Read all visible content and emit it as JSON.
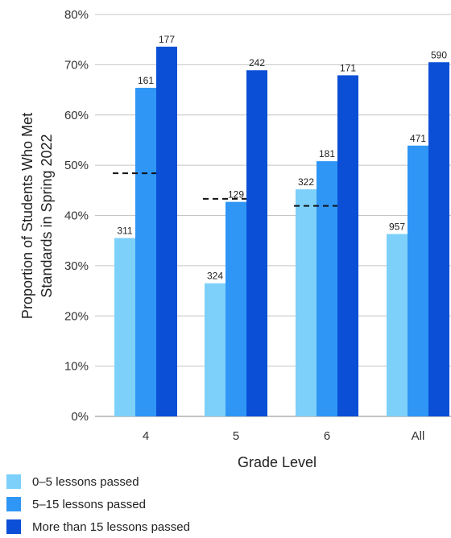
{
  "chart_data": {
    "type": "bar",
    "ylabel_lines": [
      "Proportion of Students Who Met",
      "Standards in Spring 2022"
    ],
    "xlabel": "Grade Level",
    "ylim": [
      0,
      80
    ],
    "yticks": [
      "0%",
      "10%",
      "20%",
      "30%",
      "40%",
      "50%",
      "60%",
      "70%",
      "80%"
    ],
    "categories": [
      "4",
      "5",
      "6",
      "All"
    ],
    "series": [
      {
        "name": "0–5 lessons passed",
        "color": "#7dd0fa",
        "values": [
          35.5,
          26.5,
          45.2,
          36.3
        ],
        "labels": [
          "311",
          "324",
          "322",
          "957"
        ]
      },
      {
        "name": "5–15 lessons passed",
        "color": "#2f96f5",
        "values": [
          65.4,
          42.7,
          50.8,
          53.9
        ],
        "labels": [
          "161",
          "129",
          "181",
          "471"
        ]
      },
      {
        "name": "More than 15 lessons passed",
        "color": "#0a4fd6",
        "values": [
          73.6,
          68.9,
          67.9,
          70.5
        ],
        "labels": [
          "177",
          "242",
          "171",
          "590"
        ]
      }
    ],
    "reference_lines": [
      {
        "category": "4",
        "value": 48.4
      },
      {
        "category": "5",
        "value": 43.3
      },
      {
        "category": "6",
        "value": 41.9
      }
    ],
    "grid": true,
    "legend_position": "bottom-left"
  }
}
